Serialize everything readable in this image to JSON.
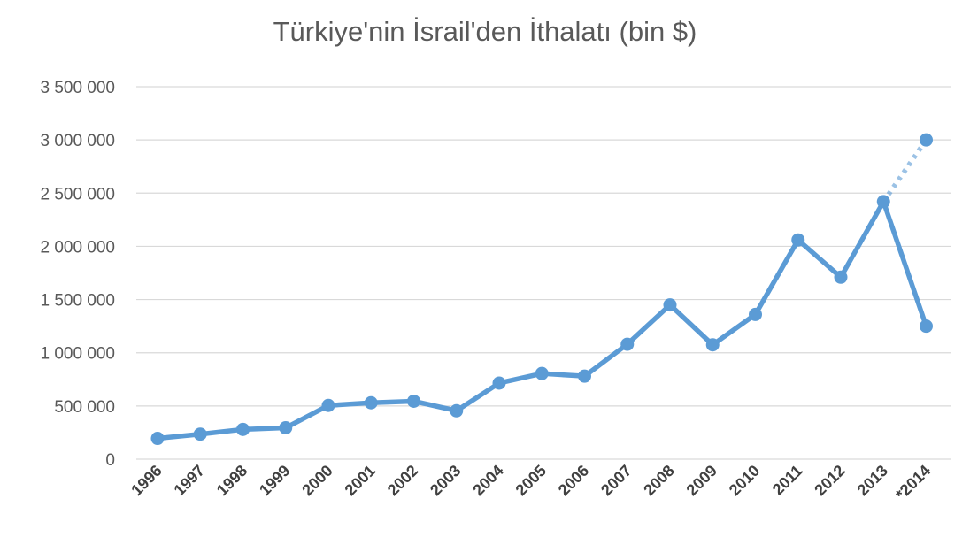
{
  "chart_data": {
    "type": "line",
    "title": "Türkiye'nin İsrail'den İthalatı (bin $)",
    "xlabel": "",
    "ylabel": "",
    "ylim": [
      0,
      3500000
    ],
    "yticks": [
      0,
      500000,
      1000000,
      1500000,
      2000000,
      2500000,
      3000000,
      3500000
    ],
    "ytick_labels": [
      "0",
      "500 000",
      "1 000 000",
      "1 500 000",
      "2 000 000",
      "2 500 000",
      "3 000 000",
      "3 500 000"
    ],
    "grid": true,
    "legend": "none",
    "categories": [
      "1996",
      "1997",
      "1998",
      "1999",
      "2000",
      "2001",
      "2002",
      "2003",
      "2004",
      "2005",
      "2006",
      "2007",
      "2008",
      "2009",
      "2010",
      "2011",
      "2012",
      "2013",
      "*2014"
    ],
    "series": [
      {
        "values": [
          195000,
          235000,
          280000,
          295000,
          505000,
          530000,
          545000,
          455000,
          715000,
          805000,
          780000,
          1080000,
          1450000,
          1075000,
          1360000,
          2060000,
          1710000,
          2420000,
          1250000
        ],
        "color": "#5b9bd5"
      }
    ],
    "projection": {
      "from_category": "2013",
      "to_category": "*2014",
      "from_value": 2420000,
      "to_value": 3000000,
      "color": "#5b9bd5",
      "style": "dotted"
    }
  }
}
